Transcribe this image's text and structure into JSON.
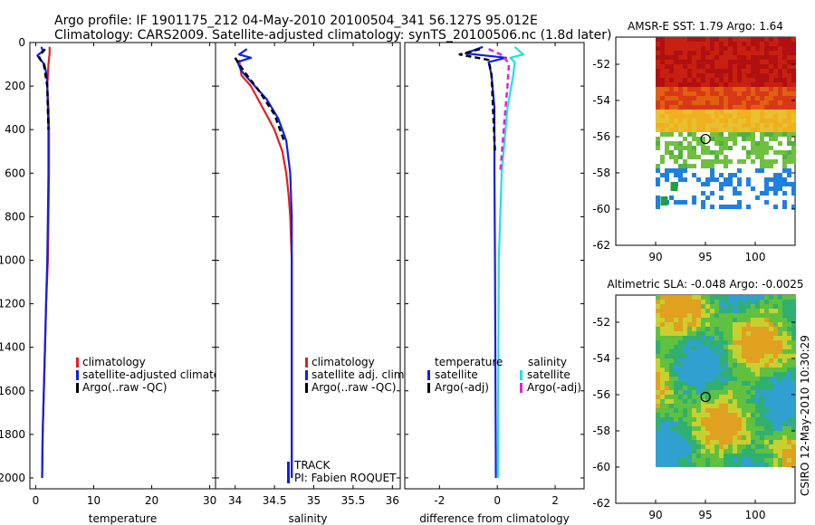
{
  "header": {
    "line1": "Argo profile: IF 1901175_212 04-May-2010 20100504_341 56.127S 95.012E",
    "line2": "Climatology: CARS2009. Satellite-adjusted climatology: synTS_20100506.nc (1.8d later)"
  },
  "footer": {
    "stamp": "CSIRO 12-May-2010 10:30:29"
  },
  "colors": {
    "climatology": "#e02020",
    "satellite": "#1020e0",
    "argo": "#000000",
    "salinity_satellite": "#20e0e0",
    "salinity_argo": "#e020e0"
  },
  "chart_data": [
    {
      "id": "temperature",
      "type": "line",
      "xlabel": "temperature",
      "xlim": [
        -1,
        31
      ],
      "ylim": [
        2050,
        0
      ],
      "xticks": [
        0,
        10,
        20,
        30
      ],
      "yticks": [
        0,
        200,
        400,
        600,
        800,
        1000,
        1200,
        1400,
        1600,
        1800,
        2000
      ],
      "legend": [
        "climatology",
        "satellite-adjusted climatology",
        "Argo(..raw -QC)"
      ],
      "series": [
        {
          "name": "climatology",
          "style": "solid",
          "color": "#e02020",
          "points": [
            [
              2.4,
              20
            ],
            [
              2.4,
              50
            ],
            [
              2.2,
              100
            ],
            [
              2.0,
              200
            ],
            [
              2.2,
              300
            ],
            [
              2.3,
              400
            ],
            [
              2.3,
              600
            ],
            [
              2.2,
              800
            ],
            [
              2.1,
              1000
            ],
            [
              1.8,
              1200
            ],
            [
              1.6,
              1400
            ],
            [
              1.4,
              1600
            ],
            [
              1.2,
              1800
            ],
            [
              1.1,
              2000
            ]
          ]
        },
        {
          "name": "satellite-adjusted climatology",
          "style": "solid",
          "color": "#1020e0",
          "points": [
            [
              1.0,
              20
            ],
            [
              1.2,
              40
            ],
            [
              0.3,
              60
            ],
            [
              0.7,
              75
            ],
            [
              1.5,
              100
            ],
            [
              1.9,
              150
            ],
            [
              2.0,
              200
            ],
            [
              2.1,
              300
            ],
            [
              2.2,
              400
            ],
            [
              2.2,
              600
            ],
            [
              2.1,
              800
            ],
            [
              2.0,
              1000
            ],
            [
              1.8,
              1200
            ],
            [
              1.6,
              1400
            ],
            [
              1.4,
              1600
            ],
            [
              1.2,
              1800
            ],
            [
              1.1,
              2000
            ]
          ]
        },
        {
          "name": "Argo(..raw -QC)",
          "style": "dashed",
          "color": "#000000",
          "points": [
            [
              1.6,
              30
            ],
            [
              1.0,
              50
            ],
            [
              0.6,
              70
            ],
            [
              1.4,
              100
            ],
            [
              2.0,
              200
            ],
            [
              2.2,
              400
            ]
          ]
        }
      ]
    },
    {
      "id": "salinity",
      "type": "line",
      "xlabel": "salinity",
      "xlim": [
        33.75,
        36.1
      ],
      "ylim": [
        2050,
        0
      ],
      "xticks": [
        34,
        34.5,
        35,
        35.5,
        36
      ],
      "legend": [
        "climatology",
        "satellite adj. clim.",
        "Argo(..raw -QC)"
      ],
      "annotations": [
        "TRACK",
        "PI: Fabien ROQUET"
      ],
      "series": [
        {
          "name": "climatology",
          "style": "solid",
          "color": "#e02020",
          "points": [
            [
              34.05,
              80
            ],
            [
              34.08,
              150
            ],
            [
              34.2,
              200
            ],
            [
              34.35,
              300
            ],
            [
              34.5,
              400
            ],
            [
              34.6,
              500
            ],
            [
              34.65,
              600
            ],
            [
              34.68,
              700
            ],
            [
              34.7,
              800
            ],
            [
              34.71,
              900
            ],
            [
              34.72,
              1000
            ],
            [
              34.72,
              1200
            ],
            [
              34.72,
              1500
            ],
            [
              34.72,
              2000
            ]
          ]
        },
        {
          "name": "satellite adj. clim.",
          "style": "solid",
          "color": "#1020e0",
          "points": [
            [
              34.15,
              30
            ],
            [
              34.05,
              55
            ],
            [
              34.2,
              70
            ],
            [
              34.03,
              90
            ],
            [
              34.08,
              130
            ],
            [
              34.2,
              180
            ],
            [
              34.4,
              260
            ],
            [
              34.55,
              350
            ],
            [
              34.65,
              450
            ],
            [
              34.7,
              600
            ],
            [
              34.72,
              800
            ],
            [
              34.72,
              1200
            ],
            [
              34.72,
              2000
            ]
          ]
        },
        {
          "name": "Argo(..raw -QC)",
          "style": "dashed",
          "color": "#000000",
          "points": [
            [
              34.0,
              70
            ],
            [
              34.05,
              100
            ],
            [
              34.15,
              150
            ],
            [
              34.3,
              220
            ],
            [
              34.5,
              330
            ],
            [
              34.62,
              450
            ]
          ]
        }
      ]
    },
    {
      "id": "difference",
      "type": "line",
      "xlabel": "difference from climatology",
      "xlim": [
        -3.2,
        3.0
      ],
      "ylim": [
        2050,
        0
      ],
      "xticks": [
        -2,
        0,
        2
      ],
      "legend_left_title": "temperature",
      "legend_right_title": "salinity",
      "legend": [
        "satellite",
        "Argo(-adj)",
        "satellite",
        "Argo(-adj)"
      ],
      "series": [
        {
          "name": "temperature satellite",
          "style": "solid",
          "color": "#1020e0",
          "points": [
            [
              -0.5,
              20
            ],
            [
              -1.1,
              50
            ],
            [
              0.3,
              70
            ],
            [
              -0.3,
              90
            ],
            [
              -0.2,
              150
            ],
            [
              -0.1,
              300
            ],
            [
              -0.1,
              600
            ],
            [
              -0.08,
              1000
            ],
            [
              -0.05,
              2000
            ]
          ]
        },
        {
          "name": "salinity satellite",
          "style": "solid",
          "color": "#20e0e0",
          "points": [
            [
              0.6,
              20
            ],
            [
              0.9,
              55
            ],
            [
              0.45,
              70
            ],
            [
              0.6,
              90
            ],
            [
              0.55,
              150
            ],
            [
              0.35,
              300
            ],
            [
              0.15,
              600
            ],
            [
              0.05,
              1000
            ],
            [
              0.02,
              2000
            ]
          ]
        },
        {
          "name": "temperature Argo(-adj)",
          "style": "dashed",
          "color": "#000000",
          "points": [
            [
              -0.6,
              30
            ],
            [
              -1.3,
              55
            ],
            [
              -0.3,
              80
            ],
            [
              -0.2,
              150
            ],
            [
              -0.15,
              300
            ],
            [
              -0.08,
              500
            ]
          ]
        },
        {
          "name": "salinity Argo(-adj)",
          "style": "dashed",
          "color": "#e020e0",
          "points": [
            [
              -0.3,
              30
            ],
            [
              0.2,
              60
            ],
            [
              0.4,
              100
            ],
            [
              0.35,
              200
            ],
            [
              0.25,
              350
            ],
            [
              0.1,
              600
            ]
          ]
        }
      ]
    },
    {
      "id": "sst_map",
      "type": "heatmap",
      "title": "AMSR-E SST: 1.79 Argo: 1.64",
      "xlim": [
        86,
        104
      ],
      "ylim": [
        -62,
        -50.5
      ],
      "xticks": [
        90,
        95,
        100
      ],
      "yticks": [
        -52,
        -54,
        -56,
        -58,
        -60,
        -62
      ],
      "profile_location": [
        95.012,
        -56.127
      ]
    },
    {
      "id": "sla_map",
      "type": "heatmap",
      "title": "Altimetric SLA: -0.048 Argo: -0.0025",
      "xlim": [
        86,
        104
      ],
      "ylim": [
        -62,
        -50.5
      ],
      "xticks": [
        90,
        95,
        100
      ],
      "yticks": [
        -52,
        -54,
        -56,
        -58,
        -60,
        -62
      ],
      "profile_location": [
        95.012,
        -56.127
      ]
    }
  ]
}
